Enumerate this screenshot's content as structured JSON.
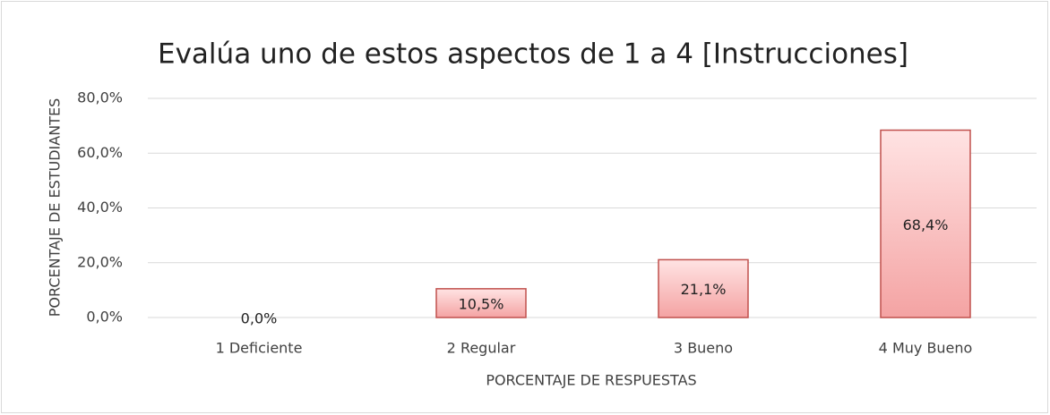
{
  "chart_data": {
    "type": "bar",
    "title": "Evalúa uno de estos aspectos de 1 a 4 [Instrucciones]",
    "x_label": "PORCENTAJE DE RESPUESTAS",
    "y_label": "PORCENTAJE DE ESTUDIANTES",
    "categories": [
      "1 Deficiente",
      "2 Regular",
      "3 Bueno",
      "4 Muy Bueno"
    ],
    "values": [
      0,
      10.5,
      21.1,
      68.4
    ],
    "value_labels": [
      "0,0%",
      "10,5%",
      "21,1%",
      "68,4%"
    ],
    "color": "#c0504d",
    "ylim": [
      0,
      80
    ],
    "yticks": [
      {
        "value": 0,
        "label": "0,0%"
      },
      {
        "value": 20,
        "label": "20,0%"
      },
      {
        "value": 40,
        "label": "40,0%"
      },
      {
        "value": 60,
        "label": "60,0%"
      },
      {
        "value": 80,
        "label": "80,0%"
      }
    ],
    "grid": true
  }
}
